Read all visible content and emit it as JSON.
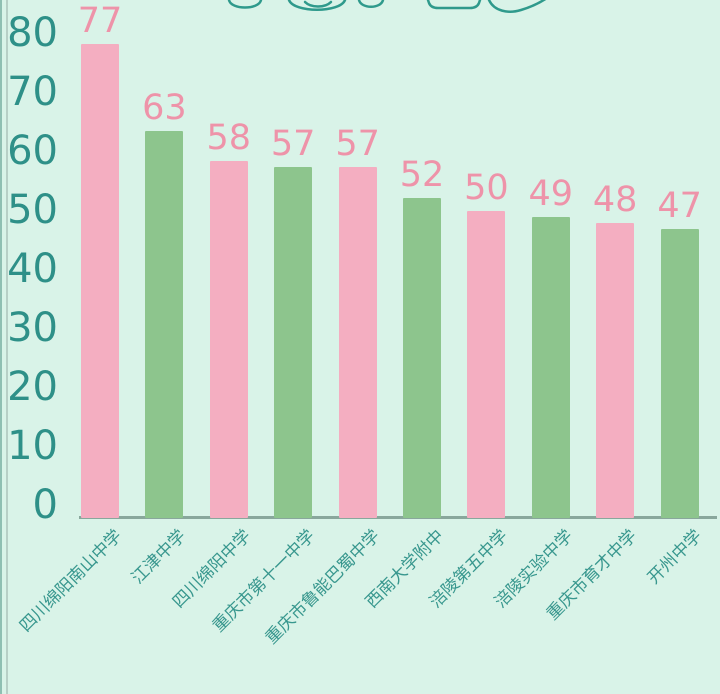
{
  "chart_data": {
    "type": "bar",
    "title": "",
    "title_note_visible_text": "",
    "categories": [
      "四川绵阳南山中学",
      "江津中学",
      "四川绵阳中学",
      "重庆市第十一中学",
      "重庆市鲁能巴蜀中学",
      "西南大学附中",
      "涪陵第五中学",
      "涪陵实验中学",
      "重庆市育才中学",
      "开州中学"
    ],
    "values": [
      77,
      63,
      58,
      57,
      57,
      52,
      50,
      49,
      48,
      47
    ],
    "yticks": [
      0,
      10,
      20,
      30,
      40,
      50,
      60,
      70,
      80
    ],
    "ylim": [
      0,
      80
    ],
    "xlabel": "",
    "ylabel": "",
    "grid": false,
    "legend": false,
    "bar_palette": [
      "#f4aec1",
      "#8dc58d"
    ],
    "colors": {
      "background": "#d9f3e8",
      "bar_pink": "#f4aec1",
      "bar_green": "#8dc58d",
      "value_label": "#ee93a9",
      "axis_tick_label": "#2e9088",
      "x_category_label": "#38978e",
      "axis_line": "#89a79c",
      "title_outline": "#2f9a8c"
    }
  }
}
